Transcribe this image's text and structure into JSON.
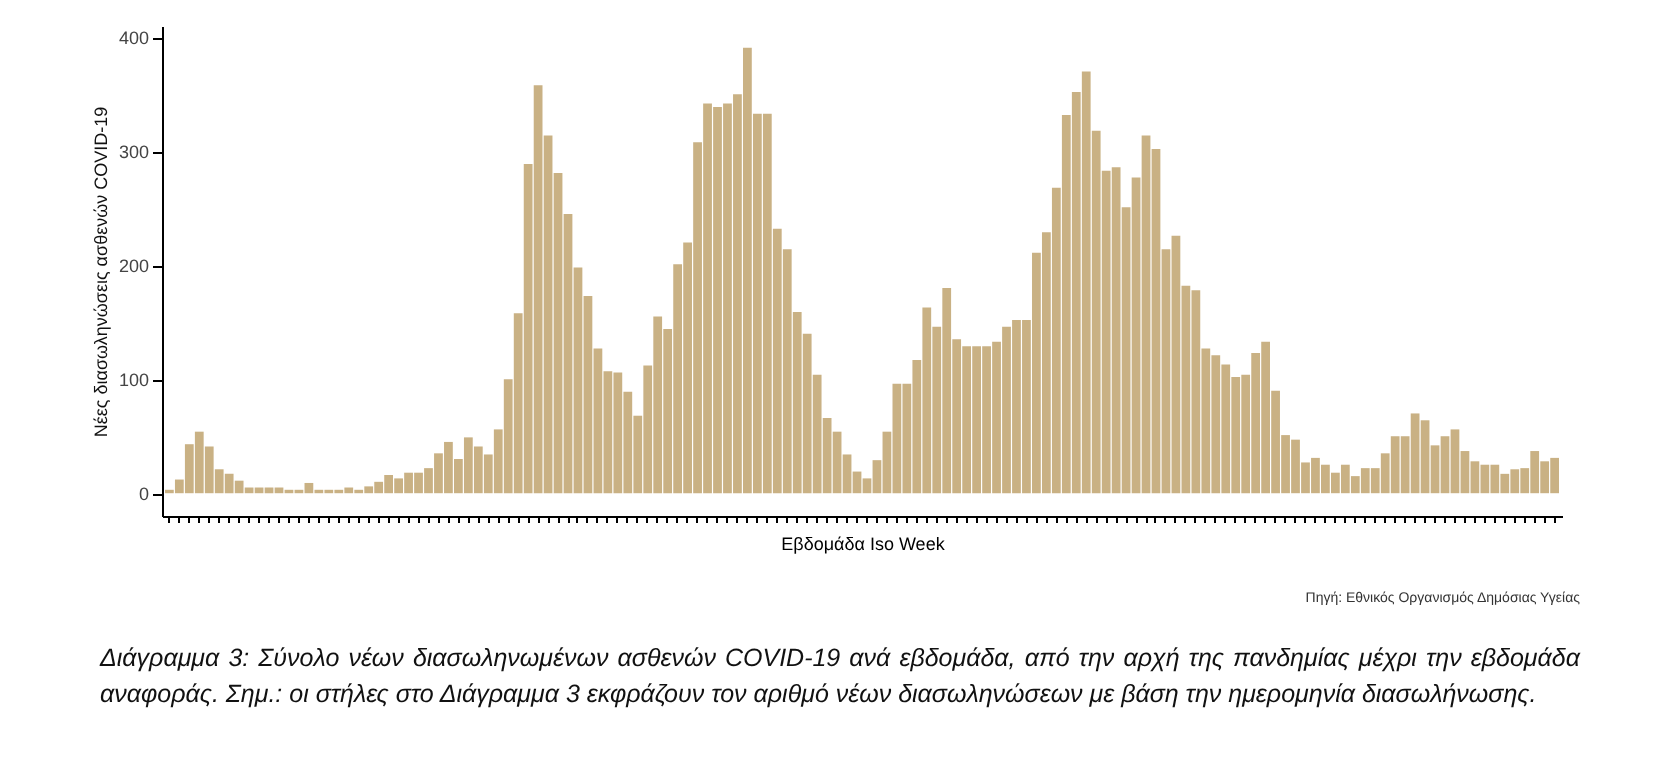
{
  "chart_data": {
    "type": "bar",
    "ylabel": "Νέες διασωληνώσεις ασθενών COVID-19",
    "xlabel": "Εβδομάδα Iso Week",
    "categories": [
      null,
      null,
      null,
      null,
      null,
      null,
      null,
      null,
      null,
      null,
      null,
      null,
      null,
      null,
      null,
      null,
      null,
      null,
      null,
      null,
      null,
      null,
      null,
      null,
      null,
      null,
      null,
      null,
      null,
      null,
      null,
      null,
      null,
      null,
      null,
      null,
      null,
      null,
      null,
      null,
      null,
      null,
      null,
      null,
      null,
      null,
      null,
      null,
      null,
      null,
      null,
      null,
      null,
      null,
      null,
      null,
      null,
      null,
      null,
      null,
      null,
      null,
      null,
      null,
      null,
      null,
      null,
      null,
      null,
      null,
      null,
      null,
      null,
      null,
      null,
      null,
      null,
      null,
      null,
      null,
      null,
      null,
      null,
      null,
      null,
      null,
      null,
      null,
      null,
      null,
      null,
      null,
      null,
      null,
      null,
      null,
      null,
      null,
      null,
      null,
      null,
      null,
      null,
      null,
      null,
      null,
      null,
      null,
      null,
      null,
      null,
      null,
      null,
      null,
      null,
      null,
      null,
      null,
      null,
      null,
      null,
      null,
      null,
      null,
      null,
      null,
      null,
      null,
      null,
      null,
      null,
      null,
      null,
      null,
      null,
      null,
      null,
      null,
      null,
      null
    ],
    "values": [
      3,
      12,
      43,
      54,
      41,
      21,
      17,
      11,
      5,
      5,
      5,
      5,
      3,
      3,
      9,
      3,
      3,
      3,
      5,
      3,
      6,
      10,
      16,
      13,
      18,
      18,
      22,
      35,
      45,
      30,
      49,
      41,
      34,
      56,
      100,
      158,
      289,
      358,
      314,
      281,
      245,
      198,
      173,
      127,
      107,
      106,
      89,
      68,
      112,
      155,
      144,
      201,
      220,
      308,
      342,
      339,
      342,
      350,
      391,
      333,
      333,
      232,
      214,
      159,
      140,
      104,
      66,
      54,
      34,
      19,
      13,
      29,
      54,
      96,
      96,
      117,
      163,
      146,
      180,
      135,
      129,
      129,
      129,
      133,
      146,
      152,
      152,
      211,
      229,
      268,
      332,
      352,
      370,
      318,
      283,
      286,
      251,
      277,
      314,
      302,
      214,
      226,
      182,
      178,
      127,
      121,
      113,
      102,
      104,
      123,
      133,
      90,
      51,
      47,
      27,
      31,
      25,
      18,
      25,
      15,
      22,
      22,
      35,
      50,
      50,
      70,
      64,
      42,
      50,
      56,
      37,
      28,
      25,
      25,
      17,
      21,
      22,
      37,
      28,
      31
    ],
    "color": "#c9b184",
    "ylim": [
      -20,
      410
    ],
    "yticks": [
      0,
      100,
      200,
      300,
      400
    ],
    "grid": false,
    "tick_labels": "y",
    "annotations": [
      "Πηγή: Εθνικός Οργανισμός Δημόσιας Υγείας",
      "Διάγραμμα 3: Σύνολο νέων διασωληνωμένων ασθενών COVID-19 ανά εβδομάδα, από την αρχή της πανδημίας μέχρι την εβδομάδα αναφοράς. Σημ.: οι στήλες στο Διάγραμμα 3 εκφράζουν τον αριθμό νέων διασωληνώσεων με βάση την ημερομηνία διασωλήνωσης."
    ]
  }
}
